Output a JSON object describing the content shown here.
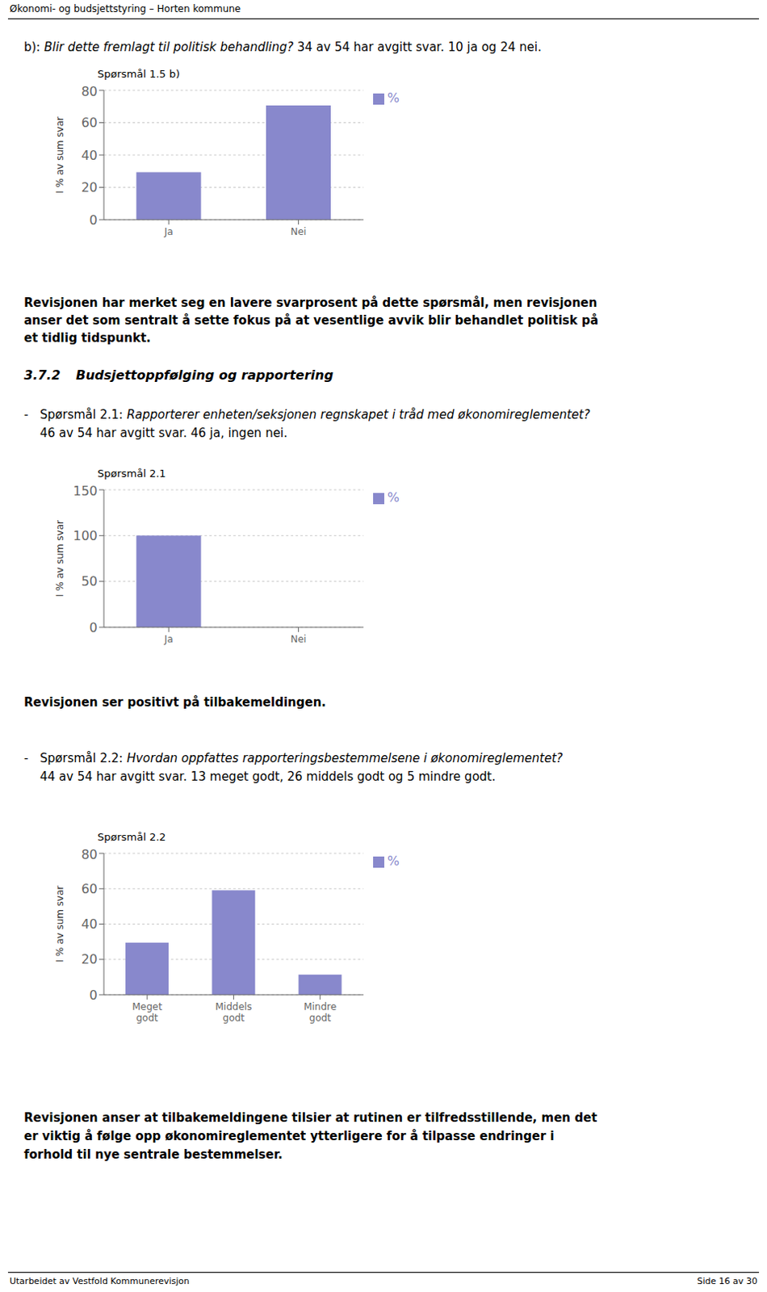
{
  "header": "Økonomi- og budsjettstyring – Horten kommune",
  "footer_left": "Utarbeidet av Vestfold Kommunerevisjon",
  "footer_right": "Side 16 av 30",
  "section_b_label": "b): ",
  "section_b_italic": "Blir dette fremlagt til politisk behandling?",
  "section_b_rest": " 34 av 54 har avgitt svar. 10 ja og 24 nei.",
  "para1_line1": "Revisjonen har merket seg en lavere svarprosent på dette spørsmål, men revisjonen",
  "para1_line2": "anser det som sentralt å sette fokus på at vesentlige avvik blir behandlet politisk på",
  "para1_line3": "et tidlig tidspunkt.",
  "section_372": "3.7.2",
  "section_372_title": "Budsjettoppfølging og rapportering",
  "q21_dash": "-",
  "q21_label": "Spørsmål 2.1:",
  "q21_italic": " Rapporterer enheten/seksjonen regnskapet i tråd med økonomireglementet?",
  "q21_rest": "46 av 54 har avgitt svar. 46 ja, ingen nei.",
  "para2": "Revisjonen ser positivt på tilbakemeldingen.",
  "q22_dash": "-",
  "q22_label": "Spørsmål 2.2:",
  "q22_italic": " Hvordan oppfattes rapporteringsbestemmelsene i økonomireglementet?",
  "q22_rest": "44 av 54 har avgitt svar. 13 meget godt, 26 middels godt og 5 mindre godt.",
  "para3_line1": "Revisjonen anser at tilbakemeldingene tilsier at rutinen er tilfredsstillende, men det",
  "para3_line2": "er viktig å følge opp økonomireglementet ytterligere for å tilpasse endringer i",
  "para3_line3": "forhold til nye sentrale bestemmelser.",
  "chart_data": [
    {
      "type": "bar",
      "title": "Spørsmål 1.5 b)",
      "categories": [
        "Ja",
        "Nei"
      ],
      "series": [
        {
          "name": "%",
          "color": "#8888cc",
          "values": [
            29.4,
            70.6
          ]
        }
      ],
      "ylabel": "I % av sum svar",
      "ylim": [
        0,
        80
      ],
      "yticks": [
        0,
        20,
        40,
        60,
        80
      ],
      "grid": true,
      "legend": "right"
    },
    {
      "type": "bar",
      "title": "Spørsmål 2.1",
      "categories": [
        "Ja",
        "Nei"
      ],
      "series": [
        {
          "name": "%",
          "color": "#8888cc",
          "values": [
            100.0,
            0.0
          ]
        }
      ],
      "ylabel": "I % av sum svar",
      "ylim": [
        0,
        150
      ],
      "yticks": [
        0,
        50,
        100,
        150
      ],
      "grid": true,
      "legend": "right"
    },
    {
      "type": "bar",
      "title": "Spørsmål 2.2",
      "categories": [
        "Meget\ngodt",
        "Middels\ngodt",
        "Mindre\ngodt"
      ],
      "series": [
        {
          "name": "%",
          "color": "#8888cc",
          "values": [
            29.5,
            59.1,
            11.4
          ]
        }
      ],
      "ylabel": "I % av sum svar",
      "ylim": [
        0,
        80
      ],
      "yticks": [
        0,
        20,
        40,
        60,
        80
      ],
      "grid": true,
      "legend": "right"
    }
  ]
}
